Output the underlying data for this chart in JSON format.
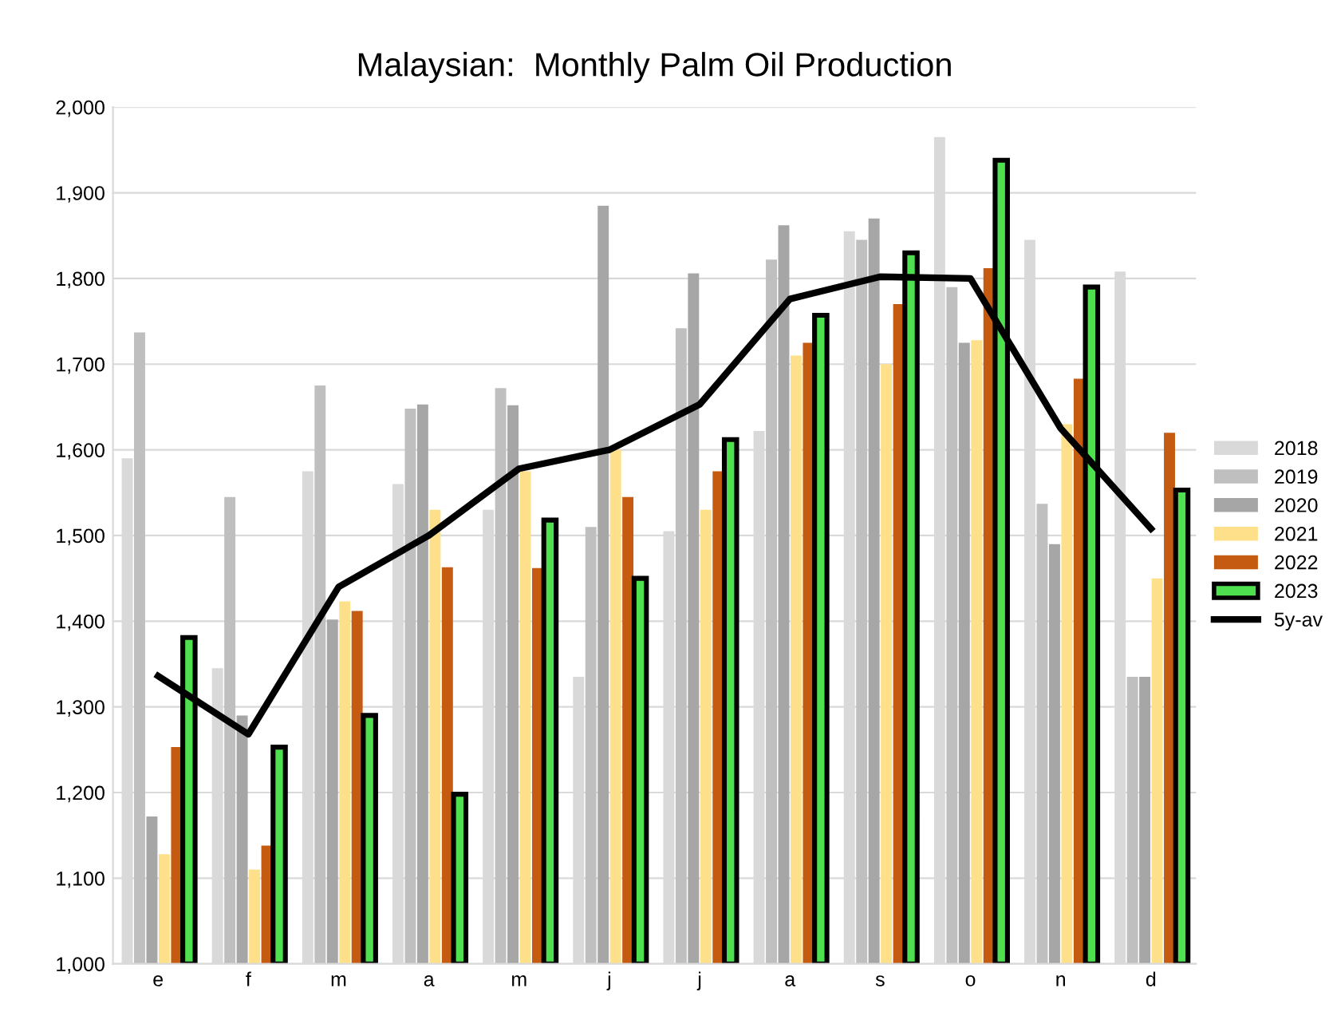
{
  "chart_data": {
    "type": "bar",
    "title": "Malaysian:  Monthly Palm Oil Production",
    "categories": [
      "e",
      "f",
      "m",
      "a",
      "m",
      "j",
      "j",
      "a",
      "s",
      "o",
      "n",
      "d"
    ],
    "series": [
      {
        "name": "2018",
        "color": "#d9d9d9",
        "values": [
          1590,
          1345,
          1575,
          1560,
          1530,
          1335,
          1505,
          1622,
          1855,
          1965,
          1845,
          1808
        ]
      },
      {
        "name": "2019",
        "color": "#bfbfbf",
        "values": [
          1737,
          1545,
          1675,
          1648,
          1672,
          1510,
          1742,
          1822,
          1845,
          1790,
          1537,
          1335
        ]
      },
      {
        "name": "2020",
        "color": "#a6a6a6",
        "values": [
          1172,
          1290,
          1402,
          1653,
          1652,
          1885,
          1806,
          1862,
          1870,
          1725,
          1490,
          1335
        ]
      },
      {
        "name": "2021",
        "color": "#ffe08a",
        "values": [
          1128,
          1110,
          1423,
          1530,
          1575,
          1600,
          1530,
          1710,
          1700,
          1728,
          1630,
          1450
        ]
      },
      {
        "name": "2022",
        "color": "#c55a11",
        "values": [
          1253,
          1138,
          1412,
          1463,
          1462,
          1545,
          1575,
          1725,
          1770,
          1812,
          1683,
          1620
        ]
      },
      {
        "name": "2023",
        "color": "#4ee04e",
        "values": [
          1381,
          1253,
          1290,
          1198,
          1518,
          1450,
          1612,
          1757,
          1830,
          1938,
          1790,
          1553
        ]
      },
      {
        "name": "5y-av",
        "type": "line",
        "color": "#000000",
        "values": [
          1336,
          1268,
          1440,
          1500,
          1578,
          1600,
          1653,
          1776,
          1802,
          1800,
          1625,
          1508
        ]
      }
    ],
    "ylim": [
      1000,
      2000
    ],
    "yticks": [
      {
        "value": 1000,
        "label": "1,000"
      },
      {
        "value": 1100,
        "label": "1,100"
      },
      {
        "value": 1200,
        "label": "1,200"
      },
      {
        "value": 1300,
        "label": "1,300"
      },
      {
        "value": 1400,
        "label": "1,400"
      },
      {
        "value": 1500,
        "label": "1,500"
      },
      {
        "value": 1600,
        "label": "1,600"
      },
      {
        "value": 1700,
        "label": "1,700"
      },
      {
        "value": 1800,
        "label": "1,800"
      },
      {
        "value": 1900,
        "label": "1,900"
      },
      {
        "value": 2000,
        "label": "2,000"
      }
    ],
    "grid": "y",
    "legend": "right",
    "marker": "none",
    "line_style": "solid"
  }
}
